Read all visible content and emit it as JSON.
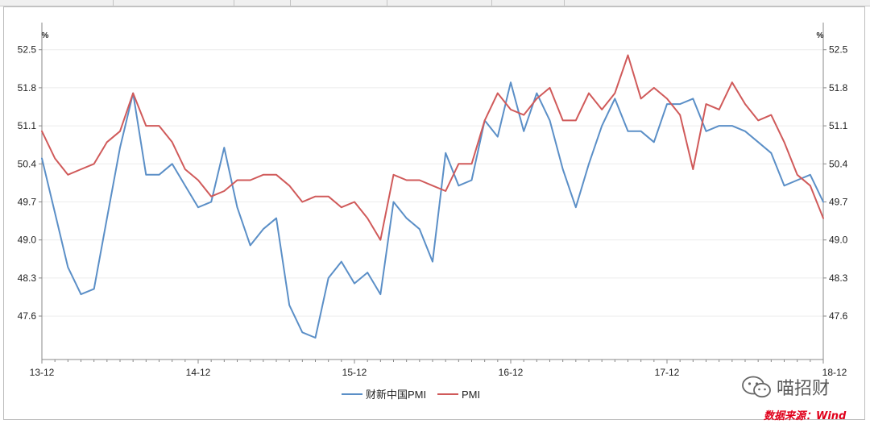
{
  "watermark": {
    "text": "喵招财",
    "logo_icon": "wechat-icon"
  },
  "source": {
    "text": "数据来源：Wind"
  },
  "colors": {
    "caixin": "#5b8fc7",
    "pmi": "#d05a5a",
    "source": "#e0001b"
  },
  "chart_data": {
    "type": "line",
    "title": "",
    "xlabel": "",
    "ylabel": "",
    "unit_left": "%",
    "unit_right": "%",
    "ylim": [
      46.8,
      53.0
    ],
    "yticks": [
      47.6,
      48.3,
      49.0,
      49.7,
      50.4,
      51.1,
      51.8,
      52.5
    ],
    "xtick_labels": [
      "13-12",
      "14-12",
      "15-12",
      "16-12",
      "17-12",
      "18-12"
    ],
    "x": [
      "13-12",
      "14-01",
      "14-02",
      "14-03",
      "14-04",
      "14-05",
      "14-06",
      "14-07",
      "14-08",
      "14-09",
      "14-10",
      "14-11",
      "14-12",
      "15-01",
      "15-02",
      "15-03",
      "15-04",
      "15-05",
      "15-06",
      "15-07",
      "15-08",
      "15-09",
      "15-10",
      "15-11",
      "15-12",
      "16-01",
      "16-02",
      "16-03",
      "16-04",
      "16-05",
      "16-06",
      "16-07",
      "16-08",
      "16-09",
      "16-10",
      "16-11",
      "16-12",
      "17-01",
      "17-02",
      "17-03",
      "17-04",
      "17-05",
      "17-06",
      "17-07",
      "17-08",
      "17-09",
      "17-10",
      "17-11",
      "17-12",
      "18-01",
      "18-02",
      "18-03",
      "18-04",
      "18-05",
      "18-06",
      "18-07",
      "18-08",
      "18-09",
      "18-10",
      "18-11",
      "18-12"
    ],
    "series": [
      {
        "name": "财新中国PMI",
        "values": [
          50.5,
          49.5,
          48.5,
          48.0,
          48.1,
          49.4,
          50.7,
          51.7,
          50.2,
          50.2,
          50.4,
          50.0,
          49.6,
          49.7,
          50.7,
          49.6,
          48.9,
          49.2,
          49.4,
          47.8,
          47.3,
          47.2,
          48.3,
          48.6,
          48.2,
          48.4,
          48.0,
          49.7,
          49.4,
          49.2,
          48.6,
          50.6,
          50.0,
          50.1,
          51.2,
          50.9,
          51.9,
          51.0,
          51.7,
          51.2,
          50.3,
          49.6,
          50.4,
          51.1,
          51.6,
          51.0,
          51.0,
          50.8,
          51.5,
          51.5,
          51.6,
          51.0,
          51.1,
          51.1,
          51.0,
          50.8,
          50.6,
          50.0,
          50.1,
          50.2,
          49.7
        ]
      },
      {
        "name": "PMI",
        "values": [
          51.0,
          50.5,
          50.2,
          50.3,
          50.4,
          50.8,
          51.0,
          51.7,
          51.1,
          51.1,
          50.8,
          50.3,
          50.1,
          49.8,
          49.9,
          50.1,
          50.1,
          50.2,
          50.2,
          50.0,
          49.7,
          49.8,
          49.8,
          49.6,
          49.7,
          49.4,
          49.0,
          50.2,
          50.1,
          50.1,
          50.0,
          49.9,
          50.4,
          50.4,
          51.2,
          51.7,
          51.4,
          51.3,
          51.6,
          51.8,
          51.2,
          51.2,
          51.7,
          51.4,
          51.7,
          52.4,
          51.6,
          51.8,
          51.6,
          51.3,
          50.3,
          51.5,
          51.4,
          51.9,
          51.5,
          51.2,
          51.3,
          50.8,
          50.2,
          50.0,
          49.4
        ]
      }
    ],
    "grid": true,
    "legend_position": "bottom-center"
  }
}
